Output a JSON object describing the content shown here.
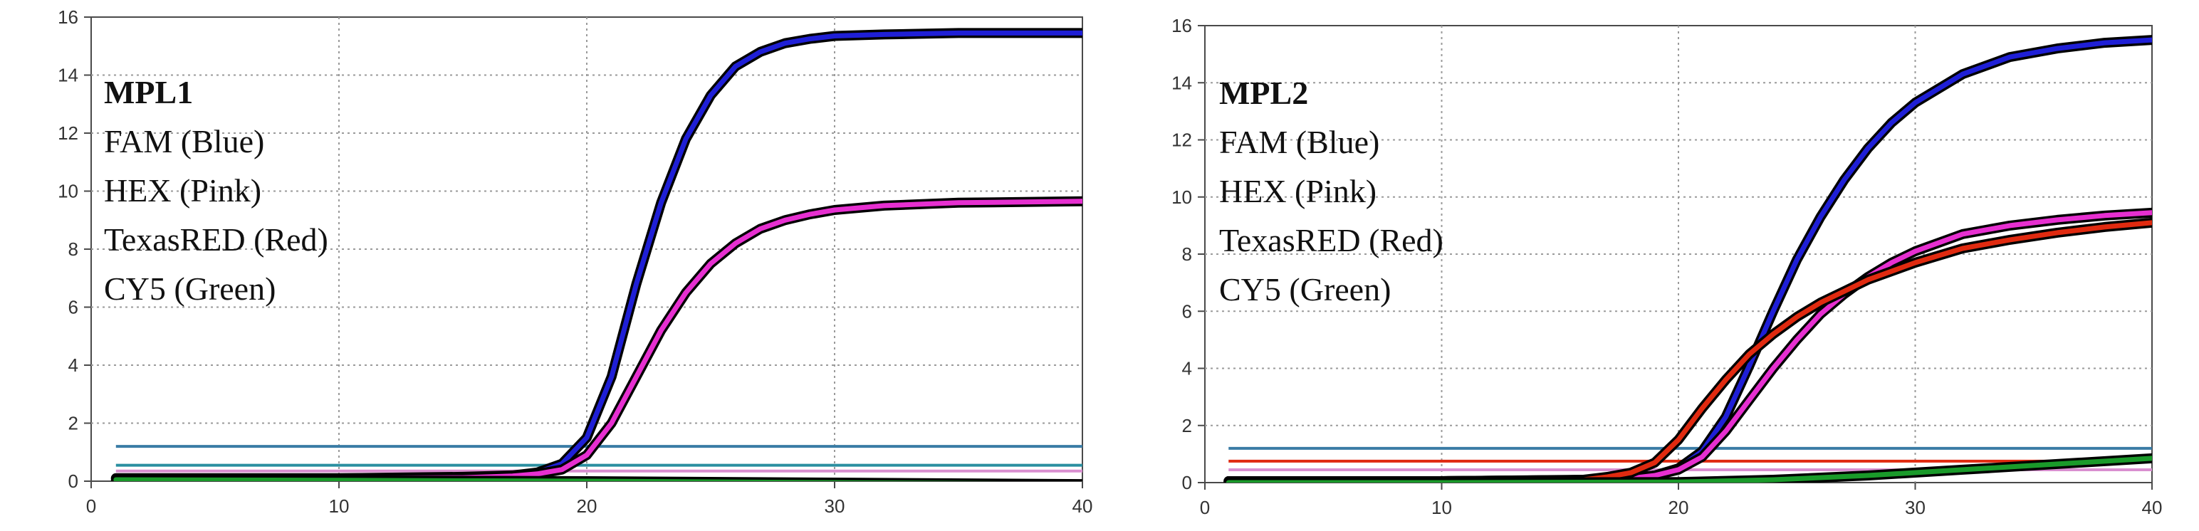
{
  "chart_data": [
    {
      "type": "line",
      "title": "",
      "xlabel": "",
      "ylabel": "",
      "xlim": [
        0,
        40
      ],
      "ylim": [
        0,
        16
      ],
      "x_ticks": [
        "0",
        "10",
        "20",
        "30",
        "40"
      ],
      "y_ticks": [
        "0",
        "2",
        "4",
        "6",
        "8",
        "10",
        "12",
        "14",
        "16"
      ],
      "grid": true,
      "legend": {
        "title": "MPL1",
        "entries": [
          "FAM (Blue)",
          "HEX (Pink)",
          "TexasRED (Red)",
          "CY5 (Green)"
        ],
        "placement": "top-left"
      },
      "threshold_lines": [
        {
          "y": 1.2,
          "color": "#3a7ca5"
        },
        {
          "y": 0.55,
          "color": "#2a8fa0"
        },
        {
          "y": 0.35,
          "color": "#d98fd0"
        }
      ],
      "series": [
        {
          "legend_ref": "FAM (Blue)",
          "color": "#1f1fd6",
          "x": [
            1,
            5,
            10,
            15,
            17,
            18,
            19,
            20,
            21,
            22,
            23,
            24,
            25,
            26,
            27,
            28,
            29,
            30,
            32,
            35,
            40
          ],
          "y": [
            0.1,
            0.1,
            0.1,
            0.15,
            0.2,
            0.3,
            0.6,
            1.5,
            3.6,
            6.8,
            9.6,
            11.8,
            13.3,
            14.3,
            14.8,
            15.1,
            15.25,
            15.35,
            15.4,
            15.45,
            15.45
          ]
        },
        {
          "legend_ref": "HEX (Pink)",
          "color": "#e62fd0",
          "x": [
            1,
            5,
            10,
            15,
            17,
            18,
            19,
            20,
            21,
            22,
            23,
            24,
            25,
            26,
            27,
            28,
            29,
            30,
            32,
            35,
            40
          ],
          "y": [
            0.1,
            0.1,
            0.1,
            0.12,
            0.18,
            0.25,
            0.4,
            0.9,
            2.0,
            3.6,
            5.2,
            6.5,
            7.5,
            8.2,
            8.7,
            9.0,
            9.2,
            9.35,
            9.5,
            9.6,
            9.65
          ]
        },
        {
          "legend_ref": "CY5 (Green)",
          "color": "#1a9a2a",
          "x": [
            1,
            10,
            20,
            30,
            40
          ],
          "y": [
            0.05,
            0.03,
            0.0,
            -0.05,
            -0.1
          ]
        }
      ]
    },
    {
      "type": "line",
      "title": "",
      "xlabel": "",
      "ylabel": "",
      "xlim": [
        0,
        40
      ],
      "ylim": [
        0,
        16
      ],
      "x_ticks": [
        "0",
        "10",
        "20",
        "30",
        "40"
      ],
      "y_ticks": [
        "0",
        "2",
        "4",
        "6",
        "8",
        "10",
        "12",
        "14",
        "16"
      ],
      "grid": true,
      "legend": {
        "title": "MPL2",
        "entries": [
          "FAM (Blue)",
          "HEX (Pink)",
          "TexasRED (Red)",
          "CY5 (Green)"
        ],
        "placement": "top-left"
      },
      "threshold_lines": [
        {
          "y": 1.2,
          "color": "#3a7ca5"
        },
        {
          "y": 0.75,
          "color": "#e02a10"
        },
        {
          "y": 0.45,
          "color": "#d98fd0"
        }
      ],
      "series": [
        {
          "legend_ref": "FAM (Blue)",
          "color": "#1f1fd6",
          "x": [
            1,
            10,
            17,
            18,
            19,
            20,
            21,
            22,
            23,
            24,
            25,
            26,
            27,
            28,
            29,
            30,
            32,
            34,
            36,
            38,
            40
          ],
          "y": [
            0.05,
            0.05,
            0.1,
            0.15,
            0.25,
            0.5,
            1.1,
            2.3,
            4.1,
            6.0,
            7.8,
            9.3,
            10.6,
            11.7,
            12.6,
            13.3,
            14.3,
            14.9,
            15.2,
            15.4,
            15.5
          ]
        },
        {
          "legend_ref": "HEX (Pink)",
          "color": "#e62fd0",
          "x": [
            1,
            10,
            17,
            18,
            19,
            20,
            21,
            22,
            23,
            24,
            25,
            26,
            27,
            28,
            29,
            30,
            32,
            34,
            36,
            38,
            40
          ],
          "y": [
            0.05,
            0.05,
            0.1,
            0.15,
            0.25,
            0.45,
            0.9,
            1.8,
            2.9,
            4.0,
            5.0,
            5.9,
            6.6,
            7.2,
            7.7,
            8.1,
            8.7,
            9.0,
            9.2,
            9.35,
            9.45
          ]
        },
        {
          "legend_ref": "TexasRED (Red)",
          "color": "#e02a10",
          "x": [
            1,
            10,
            16,
            17,
            18,
            19,
            20,
            21,
            22,
            23,
            24,
            25,
            26,
            27,
            28,
            29,
            30,
            32,
            34,
            36,
            38,
            40
          ],
          "y": [
            0.05,
            0.05,
            0.1,
            0.2,
            0.35,
            0.7,
            1.5,
            2.6,
            3.6,
            4.5,
            5.2,
            5.8,
            6.3,
            6.7,
            7.1,
            7.4,
            7.7,
            8.2,
            8.5,
            8.75,
            8.95,
            9.1
          ]
        },
        {
          "legend_ref": "CY5 (Green)",
          "color": "#1a9a2a",
          "x": [
            1,
            10,
            20,
            24,
            28,
            32,
            36,
            40
          ],
          "y": [
            0.0,
            0.0,
            0.02,
            0.1,
            0.25,
            0.45,
            0.65,
            0.85
          ]
        }
      ]
    }
  ]
}
